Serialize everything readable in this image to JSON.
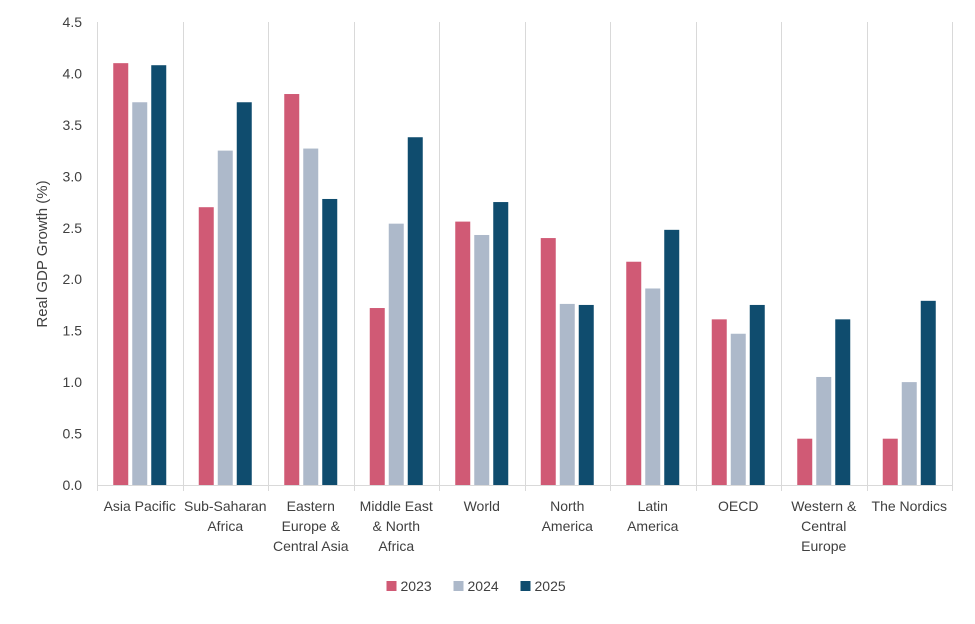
{
  "chart_data": {
    "type": "bar",
    "title": "",
    "xlabel": "",
    "ylabel": "Real GDP Growth (%)",
    "ylim": [
      0,
      4.5
    ],
    "yticks": [
      "0.0",
      "0.5",
      "1.0",
      "1.5",
      "2.0",
      "2.5",
      "3.0",
      "3.5",
      "4.0",
      "4.5"
    ],
    "grid": "vertical category separators",
    "legend_position": "bottom",
    "categories": [
      [
        "Asia Pacific"
      ],
      [
        "Sub-Saharan",
        "Africa"
      ],
      [
        "Eastern",
        "Europe &",
        "Central Asia"
      ],
      [
        "Middle East",
        "& North",
        "Africa"
      ],
      [
        "World"
      ],
      [
        "North",
        "America"
      ],
      [
        "Latin",
        "America"
      ],
      [
        "OECD"
      ],
      [
        "Western &",
        "Central",
        "Europe"
      ],
      [
        "The Nordics"
      ]
    ],
    "series": [
      {
        "name": "2023",
        "color": "#d05a75",
        "values": [
          4.1,
          2.7,
          3.8,
          1.72,
          2.56,
          2.4,
          2.17,
          1.61,
          0.45,
          0.45
        ]
      },
      {
        "name": "2024",
        "color": "#adb9ca",
        "values": [
          3.72,
          3.25,
          3.27,
          2.54,
          2.43,
          1.76,
          1.91,
          1.47,
          1.05,
          1.0
        ]
      },
      {
        "name": "2025",
        "color": "#0f4c6e",
        "values": [
          4.08,
          3.72,
          2.78,
          3.38,
          2.75,
          1.75,
          2.48,
          1.75,
          1.61,
          1.79
        ]
      }
    ]
  }
}
